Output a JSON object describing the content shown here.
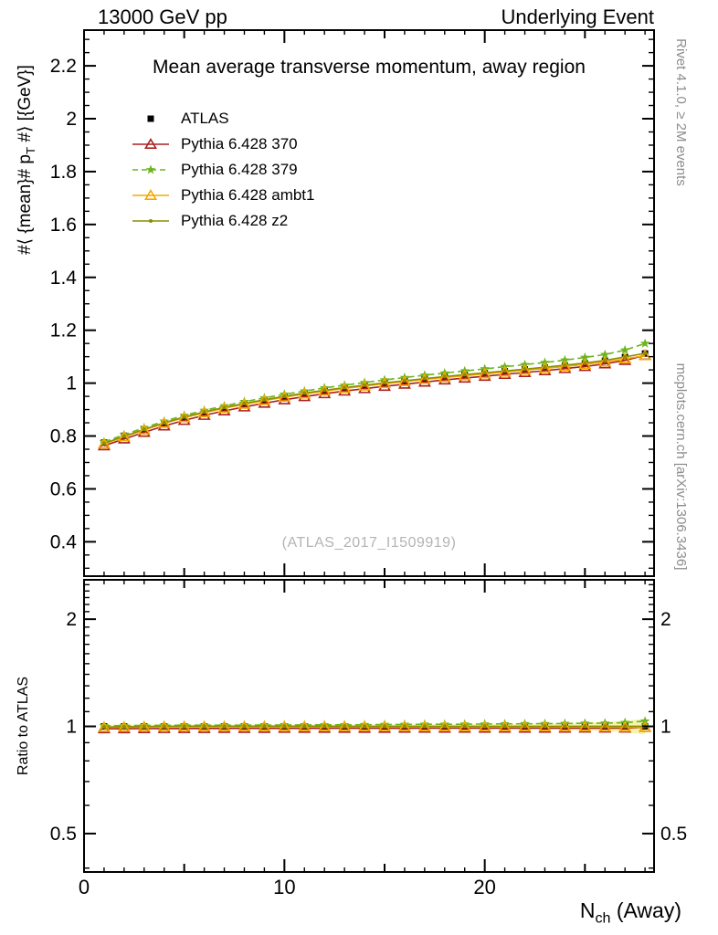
{
  "texts": {
    "header_left": "13000 GeV pp",
    "header_right": "Underlying Event",
    "title": "Mean average transverse momentum, away region",
    "watermark": "(ATLAS_2017_I1509919)",
    "rivet_caption": "Rivet 4.1.0, ≥ 2M events",
    "mcplots_caption": "mcplots.cern.ch [arXiv:1306.3436]",
    "ylabel_prefix": "#⟨ {mean}# p",
    "ylabel_sub": "T",
    "ylabel_suffix": " #⟩ [{GeV}]",
    "ratio_ylabel": "Ratio to ATLAS",
    "xlabel_prefix": "N",
    "xlabel_sub": "ch",
    "xlabel_suffix": " (Away)"
  },
  "chart_data": {
    "type": "line",
    "title": "Mean average transverse momentum, away region",
    "xlabel": "N_ch (Away)",
    "ylabel": "#⟨ {mean}# p_T #⟩ [{GeV}]",
    "ratio_ylabel": "Ratio to ATLAS",
    "legend_position": "top-left",
    "x": [
      1,
      2,
      3,
      4,
      5,
      6,
      7,
      8,
      9,
      10,
      11,
      12,
      13,
      14,
      15,
      16,
      17,
      18,
      19,
      20,
      21,
      22,
      23,
      24,
      25,
      26,
      27,
      28
    ],
    "series": [
      {
        "name": "ATLAS",
        "color": "#000000",
        "marker": "square",
        "line": "none",
        "values": [
          0.775,
          0.801,
          0.826,
          0.85,
          0.871,
          0.89,
          0.907,
          0.922,
          0.936,
          0.949,
          0.961,
          0.972,
          0.982,
          0.991,
          1.0,
          1.008,
          1.016,
          1.024,
          1.031,
          1.038,
          1.045,
          1.052,
          1.059,
          1.067,
          1.075,
          1.085,
          1.098,
          1.112
        ]
      },
      {
        "name": "Pythia 6.428 370",
        "color": "#aa2020",
        "marker": "triangle",
        "line": "solid",
        "values": [
          0.763,
          0.789,
          0.814,
          0.838,
          0.859,
          0.878,
          0.895,
          0.91,
          0.924,
          0.937,
          0.949,
          0.96,
          0.97,
          0.979,
          0.988,
          0.996,
          1.004,
          1.012,
          1.019,
          1.026,
          1.033,
          1.04,
          1.047,
          1.055,
          1.063,
          1.073,
          1.086,
          1.105
        ]
      },
      {
        "name": "Pythia 6.428 379",
        "color": "#6db41f",
        "marker": "star",
        "line": "dashed",
        "values": [
          0.778,
          0.805,
          0.831,
          0.856,
          0.878,
          0.897,
          0.914,
          0.93,
          0.944,
          0.958,
          0.97,
          0.982,
          0.992,
          1.002,
          1.012,
          1.021,
          1.03,
          1.038,
          1.046,
          1.054,
          1.062,
          1.07,
          1.078,
          1.087,
          1.097,
          1.108,
          1.125,
          1.15
        ]
      },
      {
        "name": "Pythia 6.428 ambt1",
        "color": "#f5a800",
        "marker": "triangle",
        "line": "solid",
        "values": [
          0.77,
          0.797,
          0.823,
          0.848,
          0.869,
          0.888,
          0.905,
          0.92,
          0.934,
          0.947,
          0.959,
          0.97,
          0.98,
          0.989,
          0.998,
          1.006,
          1.014,
          1.021,
          1.028,
          1.035,
          1.042,
          1.049,
          1.056,
          1.063,
          1.071,
          1.08,
          1.092,
          1.104
        ]
      },
      {
        "name": "Pythia 6.428 z2",
        "color": "#8a8e00",
        "marker": "dot",
        "line": "solid",
        "values": [
          0.772,
          0.799,
          0.825,
          0.85,
          0.872,
          0.891,
          0.908,
          0.923,
          0.937,
          0.95,
          0.962,
          0.973,
          0.983,
          0.992,
          1.001,
          1.009,
          1.017,
          1.025,
          1.032,
          1.039,
          1.046,
          1.053,
          1.06,
          1.068,
          1.076,
          1.086,
          1.099,
          1.113
        ]
      }
    ],
    "band": {
      "center": 1.0,
      "color": "#f4f4ae",
      "half_widths": [
        0.012,
        0.012,
        0.012,
        0.012,
        0.012,
        0.012,
        0.012,
        0.012,
        0.012,
        0.012,
        0.012,
        0.012,
        0.012,
        0.012,
        0.013,
        0.013,
        0.014,
        0.014,
        0.015,
        0.015,
        0.016,
        0.018,
        0.02,
        0.022,
        0.026,
        0.03,
        0.038,
        0.05
      ]
    },
    "axes": {
      "x": {
        "min": 0,
        "max": 28.45,
        "label_ticks": [
          0,
          10,
          20
        ],
        "labels": [
          "0",
          "10",
          "20"
        ],
        "minor_min": 1,
        "minor_max": 28
      },
      "y_main": {
        "min": 0.27,
        "max": 2.335,
        "majors": [
          0.4,
          0.6,
          0.8,
          1.0,
          1.2,
          1.4,
          1.6,
          1.8,
          2.0,
          2.2
        ],
        "labels": [
          "0.4",
          "0.6",
          "0.8",
          "1",
          "1.2",
          "1.4",
          "1.6",
          "1.8",
          "2",
          "2.2"
        ]
      },
      "y_ratio": {
        "min": 0.39,
        "max": 2.58,
        "scale": "log",
        "majors": [
          0.5,
          1,
          2
        ],
        "labels": [
          "0.5",
          "1",
          "2"
        ],
        "minors": [
          0.4,
          0.6,
          0.7,
          0.8,
          0.9,
          1.1,
          1.2,
          1.3,
          1.4,
          1.5,
          1.6,
          1.7,
          1.8,
          1.9,
          2.1,
          2.2,
          2.3,
          2.4,
          2.5
        ]
      }
    }
  }
}
